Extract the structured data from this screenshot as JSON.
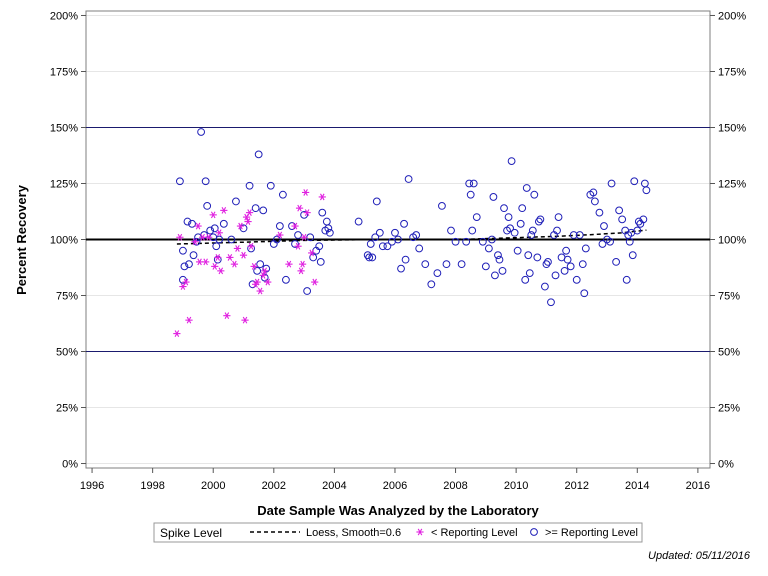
{
  "chart_data": {
    "type": "scatter",
    "xlabel": "Date Sample Was Analyzed by the Laboratory",
    "ylabel": "Percent Recovery",
    "xlim": [
      1995.8,
      2016.4
    ],
    "ylim": [
      -2,
      202
    ],
    "x_ticks": [
      1996,
      1998,
      2000,
      2002,
      2004,
      2006,
      2008,
      2010,
      2012,
      2014,
      2016
    ],
    "y_ticks": [
      {
        "value": 0,
        "label": "0%"
      },
      {
        "value": 25,
        "label": "25%"
      },
      {
        "value": 50,
        "label": "50%"
      },
      {
        "value": 75,
        "label": "75%"
      },
      {
        "value": 100,
        "label": "100%"
      },
      {
        "value": 125,
        "label": "125%"
      },
      {
        "value": 150,
        "label": "150%"
      },
      {
        "value": 175,
        "label": "175%"
      },
      {
        "value": 200,
        "label": "200%"
      }
    ],
    "grid": true,
    "reference_lines": [
      {
        "y": 150,
        "style": "thin"
      },
      {
        "y": 100,
        "style": "thick"
      },
      {
        "y": 50,
        "style": "thin"
      }
    ],
    "legend": {
      "title": "Spike Level",
      "placement": "bottom",
      "entries": [
        "Loess, Smooth=0.6",
        "< Reporting Level",
        ">= Reporting Level"
      ]
    },
    "colors": {
      "below": "#e020e0",
      "above": "#2020b8",
      "loess": "#000000",
      "reference": "#1a1a6e",
      "grid": "#e6e6e6"
    },
    "series": [
      {
        "name": ">= Reporting Level",
        "marker": "circle",
        "points": [
          [
            1998.9,
            126
          ],
          [
            1999.0,
            95
          ],
          [
            1999.05,
            88
          ],
          [
            1999.0,
            82
          ],
          [
            1999.15,
            108
          ],
          [
            1999.2,
            89
          ],
          [
            1999.3,
            107
          ],
          [
            1999.35,
            93
          ],
          [
            1999.45,
            99
          ],
          [
            1999.5,
            101
          ],
          [
            1999.6,
            148
          ],
          [
            1999.7,
            102
          ],
          [
            1999.75,
            126
          ],
          [
            1999.8,
            115
          ],
          [
            1999.9,
            104
          ],
          [
            2000.0,
            101
          ],
          [
            2000.05,
            105
          ],
          [
            2000.1,
            97
          ],
          [
            2000.15,
            91
          ],
          [
            2000.2,
            100
          ],
          [
            2000.35,
            107
          ],
          [
            2000.6,
            100
          ],
          [
            2000.75,
            117
          ],
          [
            2001.0,
            105
          ],
          [
            2001.2,
            124
          ],
          [
            2001.25,
            96
          ],
          [
            2001.3,
            80
          ],
          [
            2001.4,
            114
          ],
          [
            2001.45,
            86
          ],
          [
            2001.5,
            138
          ],
          [
            2001.55,
            89
          ],
          [
            2001.65,
            113
          ],
          [
            2001.7,
            83
          ],
          [
            2001.75,
            87
          ],
          [
            2001.9,
            124
          ],
          [
            2002.0,
            98
          ],
          [
            2002.1,
            100
          ],
          [
            2002.2,
            106
          ],
          [
            2002.3,
            120
          ],
          [
            2002.4,
            82
          ],
          [
            2002.6,
            106
          ],
          [
            2002.7,
            98
          ],
          [
            2002.8,
            102
          ],
          [
            2003.0,
            111
          ],
          [
            2003.1,
            77
          ],
          [
            2003.2,
            101
          ],
          [
            2003.3,
            92
          ],
          [
            2003.4,
            95
          ],
          [
            2003.5,
            97
          ],
          [
            2003.55,
            90
          ],
          [
            2003.6,
            112
          ],
          [
            2003.7,
            104
          ],
          [
            2003.75,
            108
          ],
          [
            2003.8,
            105
          ],
          [
            2003.85,
            103
          ],
          [
            2004.8,
            108
          ],
          [
            2005.1,
            93
          ],
          [
            2005.15,
            92
          ],
          [
            2005.2,
            98
          ],
          [
            2005.25,
            92
          ],
          [
            2005.35,
            101
          ],
          [
            2005.4,
            117
          ],
          [
            2005.5,
            103
          ],
          [
            2005.6,
            97
          ],
          [
            2005.75,
            97
          ],
          [
            2005.9,
            99
          ],
          [
            2006.0,
            103
          ],
          [
            2006.1,
            100
          ],
          [
            2006.2,
            87
          ],
          [
            2006.3,
            107
          ],
          [
            2006.35,
            91
          ],
          [
            2006.45,
            127
          ],
          [
            2006.6,
            101
          ],
          [
            2006.7,
            102
          ],
          [
            2006.8,
            96
          ],
          [
            2007.0,
            89
          ],
          [
            2007.2,
            80
          ],
          [
            2007.4,
            85
          ],
          [
            2007.55,
            115
          ],
          [
            2007.7,
            89
          ],
          [
            2007.85,
            104
          ],
          [
            2008.0,
            99
          ],
          [
            2008.2,
            89
          ],
          [
            2008.35,
            99
          ],
          [
            2008.45,
            125
          ],
          [
            2008.5,
            120
          ],
          [
            2008.55,
            104
          ],
          [
            2008.6,
            125
          ],
          [
            2008.7,
            110
          ],
          [
            2008.9,
            99
          ],
          [
            2009.0,
            88
          ],
          [
            2009.1,
            96
          ],
          [
            2009.2,
            100
          ],
          [
            2009.25,
            119
          ],
          [
            2009.3,
            84
          ],
          [
            2009.4,
            93
          ],
          [
            2009.45,
            91
          ],
          [
            2009.55,
            86
          ],
          [
            2009.6,
            114
          ],
          [
            2009.7,
            104
          ],
          [
            2009.75,
            110
          ],
          [
            2009.8,
            105
          ],
          [
            2009.85,
            135
          ],
          [
            2009.95,
            103
          ],
          [
            2010.05,
            95
          ],
          [
            2010.15,
            107
          ],
          [
            2010.2,
            114
          ],
          [
            2010.3,
            82
          ],
          [
            2010.35,
            123
          ],
          [
            2010.4,
            93
          ],
          [
            2010.45,
            85
          ],
          [
            2010.5,
            102
          ],
          [
            2010.55,
            104
          ],
          [
            2010.6,
            120
          ],
          [
            2010.7,
            92
          ],
          [
            2010.75,
            108
          ],
          [
            2010.8,
            109
          ],
          [
            2010.95,
            79
          ],
          [
            2011.0,
            89
          ],
          [
            2011.05,
            90
          ],
          [
            2011.15,
            72
          ],
          [
            2011.25,
            102
          ],
          [
            2011.3,
            84
          ],
          [
            2011.35,
            104
          ],
          [
            2011.4,
            110
          ],
          [
            2011.5,
            92
          ],
          [
            2011.6,
            86
          ],
          [
            2011.65,
            95
          ],
          [
            2011.7,
            91
          ],
          [
            2011.8,
            88
          ],
          [
            2011.9,
            102
          ],
          [
            2012.0,
            82
          ],
          [
            2012.1,
            102
          ],
          [
            2012.2,
            89
          ],
          [
            2012.25,
            76
          ],
          [
            2012.3,
            96
          ],
          [
            2012.45,
            120
          ],
          [
            2012.55,
            121
          ],
          [
            2012.6,
            117
          ],
          [
            2012.75,
            112
          ],
          [
            2012.85,
            98
          ],
          [
            2012.9,
            106
          ],
          [
            2013.0,
            100
          ],
          [
            2013.1,
            99
          ],
          [
            2013.15,
            125
          ],
          [
            2013.3,
            90
          ],
          [
            2013.4,
            113
          ],
          [
            2013.5,
            109
          ],
          [
            2013.6,
            104
          ],
          [
            2013.65,
            82
          ],
          [
            2013.7,
            102
          ],
          [
            2013.75,
            99
          ],
          [
            2013.8,
            103
          ],
          [
            2013.85,
            93
          ],
          [
            2013.9,
            126
          ],
          [
            2014.0,
            104
          ],
          [
            2014.05,
            108
          ],
          [
            2014.1,
            107
          ],
          [
            2014.2,
            109
          ],
          [
            2014.25,
            125
          ],
          [
            2014.3,
            122
          ]
        ]
      },
      {
        "name": "< Reporting Level",
        "marker": "star",
        "points": [
          [
            1998.8,
            58
          ],
          [
            1998.9,
            101
          ],
          [
            1999.0,
            79
          ],
          [
            1999.1,
            81
          ],
          [
            1999.2,
            64
          ],
          [
            1999.4,
            99
          ],
          [
            1999.5,
            106
          ],
          [
            1999.55,
            90
          ],
          [
            1999.65,
            101
          ],
          [
            1999.75,
            90
          ],
          [
            1999.85,
            101
          ],
          [
            2000.0,
            111
          ],
          [
            2000.05,
            88
          ],
          [
            2000.15,
            92
          ],
          [
            2000.2,
            103
          ],
          [
            2000.25,
            86
          ],
          [
            2000.35,
            113
          ],
          [
            2000.45,
            66
          ],
          [
            2000.55,
            92
          ],
          [
            2000.7,
            89
          ],
          [
            2000.8,
            96
          ],
          [
            2000.9,
            106
          ],
          [
            2001.0,
            93
          ],
          [
            2001.05,
            64
          ],
          [
            2001.1,
            110
          ],
          [
            2001.15,
            108
          ],
          [
            2001.2,
            112
          ],
          [
            2001.25,
            97
          ],
          [
            2001.35,
            88
          ],
          [
            2001.4,
            80
          ],
          [
            2001.45,
            81
          ],
          [
            2001.55,
            77
          ],
          [
            2001.65,
            84
          ],
          [
            2001.7,
            86
          ],
          [
            2001.8,
            81
          ],
          [
            2002.2,
            102
          ],
          [
            2002.5,
            89
          ],
          [
            2002.7,
            106
          ],
          [
            2002.8,
            97
          ],
          [
            2002.85,
            114
          ],
          [
            2002.9,
            86
          ],
          [
            2002.95,
            89
          ],
          [
            2003.0,
            101
          ],
          [
            2003.05,
            121
          ],
          [
            2003.1,
            112
          ],
          [
            2003.25,
            94
          ],
          [
            2003.35,
            81
          ],
          [
            2003.6,
            119
          ]
        ]
      }
    ],
    "loess": [
      [
        1998.8,
        98
      ],
      [
        2001.0,
        98.8
      ],
      [
        2003.0,
        99.6
      ],
      [
        2005.0,
        99.9
      ],
      [
        2007.0,
        100.0
      ],
      [
        2008.5,
        100.2
      ],
      [
        2010.0,
        100.8
      ],
      [
        2011.5,
        101.5
      ],
      [
        2012.5,
        102.2
      ],
      [
        2013.5,
        103.0
      ],
      [
        2014.3,
        104.2
      ]
    ]
  },
  "footnote": "Updated: 05/11/2016"
}
